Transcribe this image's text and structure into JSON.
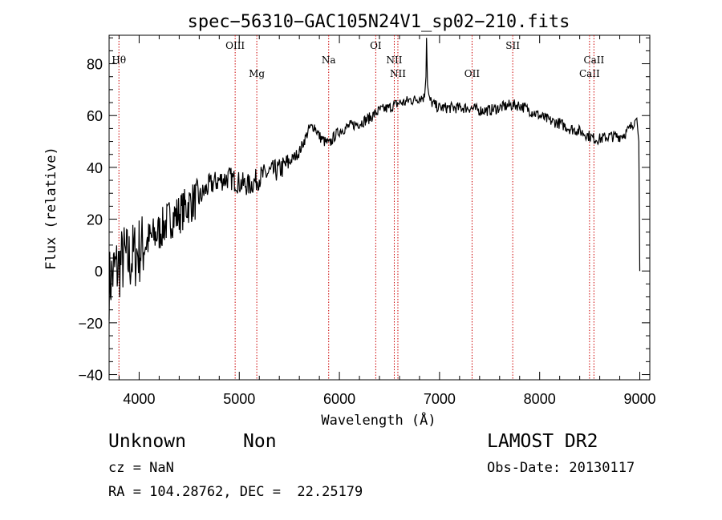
{
  "chart_data": {
    "type": "line",
    "title": "spec−56310−GAC105N24V1_sp02−210.fits",
    "xlabel": "Wavelength (Å)",
    "ylabel": "Flux (relative)",
    "xlim": [
      3700,
      9100
    ],
    "ylim": [
      -42,
      91
    ],
    "x_ticks": [
      4000,
      5000,
      6000,
      7000,
      8000,
      9000
    ],
    "y_ticks": [
      -40,
      -20,
      0,
      20,
      40,
      60,
      80
    ],
    "y_tick_labels": [
      "−40",
      "−20",
      "0",
      "20",
      "40",
      "60",
      "80"
    ],
    "grid": false,
    "line_color": "#000000",
    "marker_color": "#cc0000",
    "series": [
      {
        "x": [
          3700,
          3750,
          3800,
          3850,
          3900,
          3950,
          4000,
          4100,
          4200,
          4300,
          4400,
          4500,
          4600,
          4700,
          4800,
          4900,
          5000,
          5100,
          5200,
          5300,
          5400,
          5500,
          5600,
          5700,
          5750,
          5800,
          5850,
          5900,
          5950,
          6000,
          6100,
          6200,
          6300,
          6400,
          6500,
          6550,
          6600,
          6650,
          6700,
          6750,
          6800,
          6850,
          6865,
          6870,
          6880,
          6900,
          6950,
          7000,
          7100,
          7200,
          7300,
          7400,
          7500,
          7600,
          7700,
          7800,
          7850,
          7900,
          8000,
          8100,
          8200,
          8300,
          8400,
          8450,
          8500,
          8550,
          8600,
          8700,
          8800,
          8850,
          8900,
          8950,
          8970,
          8990,
          9000
        ],
        "y": [
          -5,
          0,
          2,
          5,
          4,
          6,
          8,
          12,
          15,
          20,
          22,
          26,
          28,
          33,
          35,
          36,
          34,
          33,
          36,
          38,
          39,
          42,
          46,
          55,
          56,
          52,
          50,
          49,
          52,
          54,
          56,
          57,
          59,
          62,
          63,
          64,
          65,
          65,
          66,
          66,
          67,
          67,
          75,
          90,
          72,
          66,
          64,
          63,
          63,
          63,
          63,
          62,
          62,
          63,
          64,
          64,
          63,
          62,
          60,
          58,
          57,
          55,
          54,
          53,
          52,
          51,
          51,
          52,
          52,
          53,
          55,
          58,
          59,
          50,
          0
        ]
      }
    ],
    "lines": [
      {
        "label": "Hθ",
        "x": 3798,
        "label_row": "upper"
      },
      {
        "label": "OIII",
        "x": 4959,
        "label_row": "top"
      },
      {
        "label": "Mg",
        "x": 5175,
        "label_row": "lower"
      },
      {
        "label": "Na",
        "x": 5893,
        "label_row": "upper"
      },
      {
        "label": "OI",
        "x": 6363,
        "label_row": "top"
      },
      {
        "label": "NII",
        "x": 6548,
        "label_row": "upper"
      },
      {
        "label": "NII",
        "x": 6584,
        "label_row": "lower"
      },
      {
        "label": "OII",
        "x": 7325,
        "label_row": "lower"
      },
      {
        "label": "SII",
        "x": 7731,
        "label_row": "top"
      },
      {
        "label": "CaII",
        "x": 8498,
        "label_row": "lower"
      },
      {
        "label": "CaII",
        "x": 8542,
        "label_row": "upper"
      }
    ]
  },
  "info": {
    "object": "Unknown",
    "subclass": "Non",
    "survey": "LAMOST DR2",
    "cz": "cz = NaN",
    "obs_date": "Obs-Date: 20130117",
    "radec": "RA = 104.28762, DEC =  22.25179"
  }
}
